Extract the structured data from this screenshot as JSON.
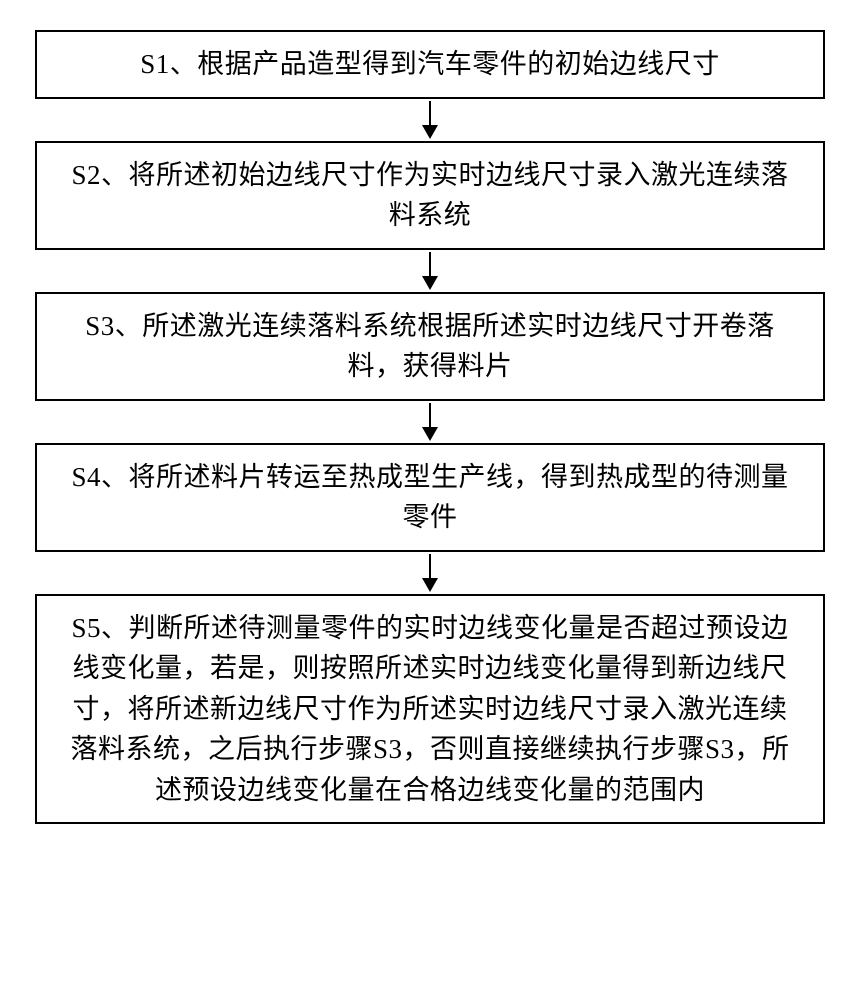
{
  "flowchart": {
    "type": "flowchart",
    "direction": "vertical",
    "background_color": "#ffffff",
    "box_border_color": "#000000",
    "box_border_width": 2,
    "text_color": "#000000",
    "font_size": 27,
    "font_family": "SimSun",
    "arrow_color": "#000000",
    "arrow_height": 42,
    "steps": [
      {
        "id": "s1",
        "text": "S1、根据产品造型得到汽车零件的初始边线尺寸"
      },
      {
        "id": "s2",
        "text": "S2、将所述初始边线尺寸作为实时边线尺寸录入激光连续落料系统"
      },
      {
        "id": "s3",
        "text": "S3、所述激光连续落料系统根据所述实时边线尺寸开卷落料，获得料片"
      },
      {
        "id": "s4",
        "text": "S4、将所述料片转运至热成型生产线，得到热成型的待测量零件"
      },
      {
        "id": "s5",
        "text": "S5、判断所述待测量零件的实时边线变化量是否超过预设边线变化量，若是，则按照所述实时边线变化量得到新边线尺寸，将所述新边线尺寸作为所述实时边线尺寸录入激光连续落料系统，之后执行步骤S3，否则直接继续执行步骤S3，所述预设边线变化量在合格边线变化量的范围内"
      }
    ]
  }
}
